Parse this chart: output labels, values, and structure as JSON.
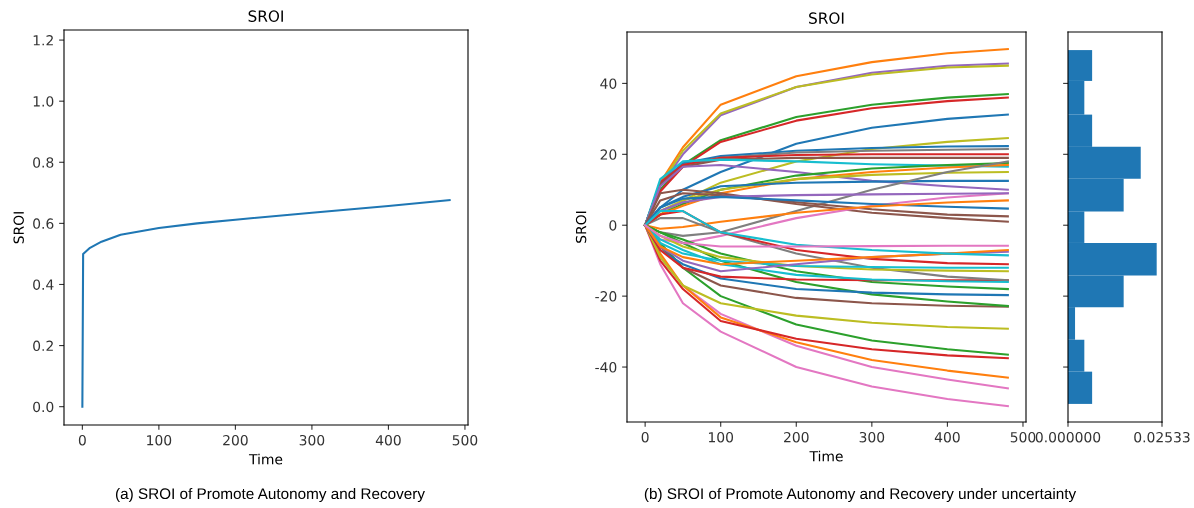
{
  "chart_data": [
    {
      "type": "line",
      "title": "SROI",
      "xlabel": "Time",
      "ylabel": "SROI",
      "x": [
        0,
        1,
        10,
        25,
        50,
        100,
        150,
        200,
        300,
        400,
        480
      ],
      "series": [
        {
          "color": "#1f77b4",
          "values": [
            0,
            0.5,
            0.52,
            0.54,
            0.563,
            0.585,
            0.6,
            0.612,
            0.635,
            0.657,
            0.676
          ]
        }
      ],
      "xlim": [
        -24,
        504
      ],
      "xticks": [
        0,
        100,
        200,
        300,
        400,
        500
      ],
      "ylim": [
        -0.06,
        1.233
      ],
      "yticks": [
        {
          "value": 0,
          "label": "0.0"
        },
        {
          "value": 0.2,
          "label": "0.2"
        },
        {
          "value": 0.4,
          "label": "0.4"
        },
        {
          "value": 0.6,
          "label": "0.6"
        },
        {
          "value": 0.8,
          "label": "0.8"
        },
        {
          "value": 1.0,
          "label": "1.0"
        },
        {
          "value": 1.2,
          "label": "1.2"
        }
      ],
      "grid": false,
      "annotations": [
        "(a) SROI of Promote Autonomy and Recovery"
      ]
    },
    {
      "type": "line",
      "title": "SROI",
      "xlabel": "Time",
      "ylabel": "SROI",
      "x": [
        0,
        20,
        50,
        100,
        200,
        300,
        400,
        480
      ],
      "series": [
        {
          "color": "#ff7f0e",
          "values": [
            0,
            12,
            22,
            34,
            42,
            46,
            48.5,
            49.7
          ]
        },
        {
          "color": "#9467bd",
          "values": [
            0,
            11,
            20,
            31,
            39,
            43,
            45,
            45.6
          ]
        },
        {
          "color": "#bcbd22",
          "values": [
            0,
            11.5,
            21,
            31.5,
            39,
            42.5,
            44.5,
            45
          ]
        },
        {
          "color": "#2ca02c",
          "values": [
            0,
            10,
            17,
            24,
            30.5,
            34,
            36,
            37
          ]
        },
        {
          "color": "#d62728",
          "values": [
            0,
            9.5,
            16.5,
            23.5,
            29.5,
            33,
            35,
            36
          ]
        },
        {
          "color": "#1f77b4",
          "values": [
            0,
            5,
            10,
            15,
            23,
            27.5,
            30,
            31.2
          ]
        },
        {
          "color": "#bcbd22",
          "values": [
            0,
            3,
            7,
            12,
            18,
            21.5,
            23.5,
            24.6
          ]
        },
        {
          "color": "#1f77b4",
          "values": [
            0,
            12,
            17.5,
            19.5,
            21,
            21.8,
            22.2,
            22.3
          ]
        },
        {
          "color": "#7f7f7f",
          "values": [
            0,
            12,
            17,
            19,
            20.5,
            21,
            21.3,
            21.5
          ]
        },
        {
          "color": "#d62728",
          "values": [
            0,
            12,
            17,
            19,
            19.8,
            20,
            20,
            20
          ]
        },
        {
          "color": "#8c564b",
          "values": [
            0,
            11.5,
            16.5,
            18.5,
            19,
            19,
            19,
            19
          ]
        },
        {
          "color": "#17becf",
          "values": [
            0,
            13,
            18,
            18.5,
            18,
            17.2,
            16.8,
            16.5
          ]
        },
        {
          "color": "#9467bd",
          "values": [
            0,
            11,
            16.5,
            17,
            15,
            12.5,
            11,
            10
          ]
        },
        {
          "color": "#2ca02c",
          "values": [
            0,
            3,
            6,
            10,
            14,
            16,
            17,
            17.5
          ]
        },
        {
          "color": "#ff7f0e",
          "values": [
            0,
            3,
            5.5,
            9,
            13,
            15,
            16.3,
            17
          ]
        },
        {
          "color": "#bcbd22",
          "values": [
            0,
            4,
            7,
            10,
            13,
            14.2,
            14.8,
            15
          ]
        },
        {
          "color": "#1f77b4",
          "values": [
            0,
            5,
            8,
            11,
            12,
            12.3,
            12.5,
            12.5
          ]
        },
        {
          "color": "#7f7f7f",
          "values": [
            0,
            -2,
            -3,
            -2,
            4,
            10,
            15,
            18
          ]
        },
        {
          "color": "#8c564b",
          "values": [
            0,
            9,
            10,
            9,
            6,
            3.5,
            2,
            1
          ]
        },
        {
          "color": "#8c564b",
          "values": [
            0,
            7,
            9,
            8.5,
            6.5,
            4.5,
            3,
            2.5
          ]
        },
        {
          "color": "#e377c2",
          "values": [
            0,
            -4,
            -5,
            -3,
            2,
            5.5,
            7.8,
            9
          ]
        },
        {
          "color": "#9467bd",
          "values": [
            0,
            4,
            6.5,
            8,
            8.5,
            8.7,
            8.9,
            9
          ]
        },
        {
          "color": "#1f77b4",
          "values": [
            0,
            5,
            7.5,
            8,
            7,
            6,
            5.2,
            4.7
          ]
        },
        {
          "color": "#ff7f0e",
          "values": [
            0,
            -1,
            -0.5,
            1,
            3.5,
            5.3,
            6.4,
            7
          ]
        },
        {
          "color": "#e377c2",
          "values": [
            0,
            -11,
            -22,
            -30,
            -40,
            -45.5,
            -49,
            -51
          ]
        },
        {
          "color": "#e377c2",
          "values": [
            0,
            -9,
            -17,
            -25,
            -34,
            -40,
            -43.5,
            -46
          ]
        },
        {
          "color": "#ff7f0e",
          "values": [
            0,
            -8,
            -17,
            -26,
            -33,
            -38,
            -41,
            -43
          ]
        },
        {
          "color": "#d62728",
          "values": [
            0,
            -10,
            -18,
            -27,
            -32,
            -35,
            -36.7,
            -37.5
          ]
        },
        {
          "color": "#2ca02c",
          "values": [
            0,
            -5,
            -12,
            -20,
            -28,
            -32.5,
            -35,
            -36.5
          ]
        },
        {
          "color": "#bcbd22",
          "values": [
            0,
            -9,
            -17,
            -22,
            -25.5,
            -27.5,
            -28.7,
            -29.2
          ]
        },
        {
          "color": "#8c564b",
          "values": [
            0,
            -6,
            -12,
            -17,
            -20.5,
            -22,
            -22.7,
            -23
          ]
        },
        {
          "color": "#2ca02c",
          "values": [
            0,
            -2,
            -5,
            -10,
            -16,
            -19.5,
            -21.5,
            -22.8
          ]
        },
        {
          "color": "#1f77b4",
          "values": [
            0,
            -7,
            -11,
            -15,
            -18,
            -19,
            -19.5,
            -19.7
          ]
        },
        {
          "color": "#2ca02c",
          "values": [
            0,
            -2,
            -4,
            -8,
            -13,
            -16,
            -17.3,
            -18
          ]
        },
        {
          "color": "#d62728",
          "values": [
            0,
            -7,
            -12,
            -14.5,
            -15.3,
            -15.5,
            -15.5,
            -15.5
          ]
        },
        {
          "color": "#17becf",
          "values": [
            0,
            -4,
            -7,
            -11,
            -14,
            -15.3,
            -15.8,
            -16
          ]
        },
        {
          "color": "#7f7f7f",
          "values": [
            0,
            2,
            2,
            -2,
            -8,
            -12,
            -14.5,
            -15.5
          ]
        },
        {
          "color": "#bcbd22",
          "values": [
            0,
            -3,
            -6,
            -9,
            -11.5,
            -12.5,
            -12.8,
            -13
          ]
        },
        {
          "color": "#d62728",
          "values": [
            0,
            3,
            4,
            -2,
            -7,
            -9.5,
            -10.7,
            -11
          ]
        },
        {
          "color": "#17becf",
          "values": [
            0,
            -5,
            -8,
            -10,
            -11.5,
            -11.8,
            -12,
            -12
          ]
        },
        {
          "color": "#9467bd",
          "values": [
            0,
            -6,
            -10,
            -13,
            -11,
            -9,
            -8,
            -7.5
          ]
        },
        {
          "color": "#ff7f0e",
          "values": [
            0,
            -6,
            -9,
            -11,
            -10,
            -9,
            -8,
            -7
          ]
        },
        {
          "color": "#17becf",
          "values": [
            0,
            4,
            4,
            -2,
            -5.5,
            -7,
            -8,
            -8.5
          ]
        },
        {
          "color": "#e377c2",
          "values": [
            0,
            -3,
            -5,
            -6,
            -6,
            -5.9,
            -5.8,
            -5.8
          ]
        }
      ],
      "xlim": [
        -24,
        504
      ],
      "xticks": [
        0,
        100,
        200,
        300,
        400,
        500
      ],
      "ylim": [
        -55.5,
        54.5
      ],
      "yticks": [
        -40,
        -20,
        0,
        20,
        40
      ],
      "grid": false,
      "annotations": [
        "(b) SROI of Promote Autonomy and Recovery under uncertainty"
      ]
    },
    {
      "type": "histogram",
      "orientation": "horizontal",
      "color": "#1f77b4",
      "bins": [
        -50.4,
        -41.3,
        -32.3,
        -23.1,
        -14.2,
        -5.0,
        3.9,
        13.1,
        22.1,
        31.2,
        40.7,
        49.4
      ],
      "values": [
        0.0065,
        0.0044,
        0.0019,
        0.015,
        0.0239,
        0.0044,
        0.015,
        0.0196,
        0.0065,
        0.0044,
        0.0065
      ],
      "xlim": [
        0,
        0.02533
      ],
      "xticks": [
        {
          "value": 0,
          "label": "0.000000"
        },
        {
          "value": 0.02533,
          "label": "0.02533"
        }
      ],
      "ylim": [
        -55.5,
        54.5
      ],
      "yticks": [
        -40,
        -20,
        0,
        20,
        40
      ],
      "tick_labels": "x",
      "grid": false
    }
  ]
}
